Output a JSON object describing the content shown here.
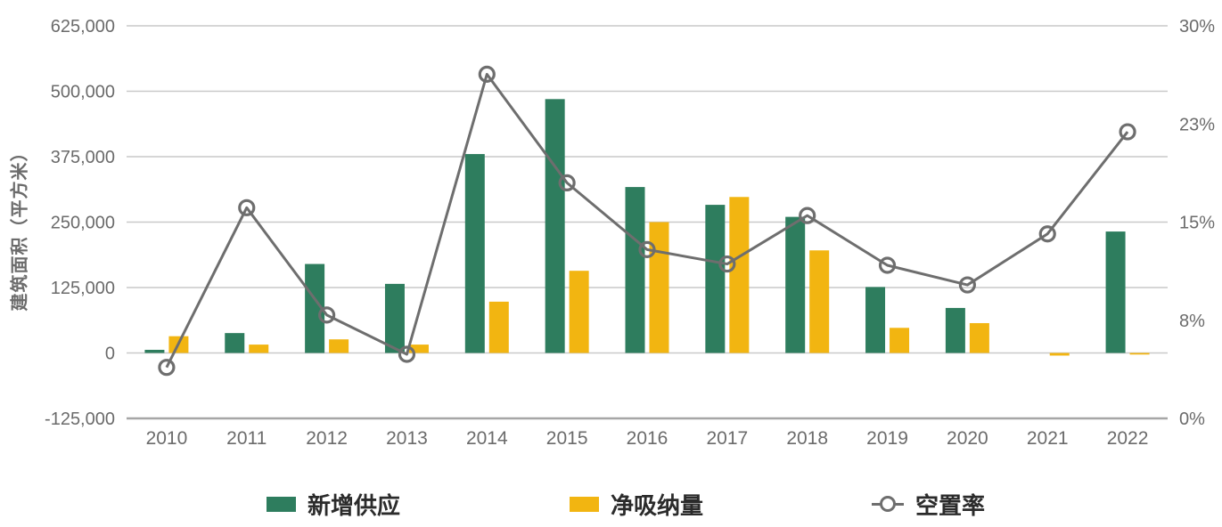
{
  "chart_data": {
    "type": "bar",
    "combo": "bar-line",
    "categories": [
      "2010",
      "2011",
      "2012",
      "2013",
      "2014",
      "2015",
      "2016",
      "2017",
      "2018",
      "2019",
      "2020",
      "2021",
      "2022"
    ],
    "series": [
      {
        "name": "新增供应",
        "type": "bar",
        "axis": "left",
        "color": "#2e7d5e",
        "values": [
          6000,
          38000,
          170000,
          132000,
          380000,
          485000,
          317000,
          283000,
          260000,
          126000,
          86000,
          0,
          232000
        ]
      },
      {
        "name": "净吸纳量",
        "type": "bar",
        "axis": "left",
        "color": "#f2b511",
        "values": [
          32000,
          16000,
          26000,
          16000,
          98000,
          157000,
          250000,
          298000,
          196000,
          48000,
          57000,
          -5000,
          -3000
        ]
      },
      {
        "name": "空置率",
        "type": "line",
        "axis": "right",
        "color": "#6e6e6e",
        "values": [
          3.9,
          16.1,
          7.9,
          4.9,
          26.3,
          18.0,
          12.9,
          11.8,
          15.5,
          11.7,
          10.2,
          14.1,
          21.9
        ]
      }
    ],
    "left_axis": {
      "title": "建筑面积（平方米）",
      "min": -125000,
      "max": 625000,
      "tick_values": [
        625000,
        500000,
        375000,
        250000,
        125000,
        0,
        -125000
      ],
      "tick_labels": [
        "625,000",
        "500,000",
        "375,000",
        "250,000",
        "125,000",
        "0",
        "-125,000"
      ]
    },
    "right_axis": {
      "min": 0,
      "max": 30,
      "tick_values": [
        30,
        22.5,
        15,
        7.5,
        0
      ],
      "tick_labels": [
        "30%",
        "23%",
        "15%",
        "8%",
        "0%"
      ]
    },
    "grid": true,
    "legend_position": "bottom",
    "colors": {
      "gridline": "#c9c9c9",
      "axis_line": "#a6a6a6",
      "tick_text": "#6b6b6b",
      "legend_text": "#2b2b2b"
    }
  },
  "legend": {
    "items": [
      {
        "label": "新增供应",
        "marker": "green-square-icon",
        "color": "#2e7d5e"
      },
      {
        "label": "净吸纳量",
        "marker": "yellow-square-icon",
        "color": "#f2b511"
      },
      {
        "label": "空置率",
        "marker": "circle-line-icon",
        "color": "#6e6e6e"
      }
    ]
  }
}
